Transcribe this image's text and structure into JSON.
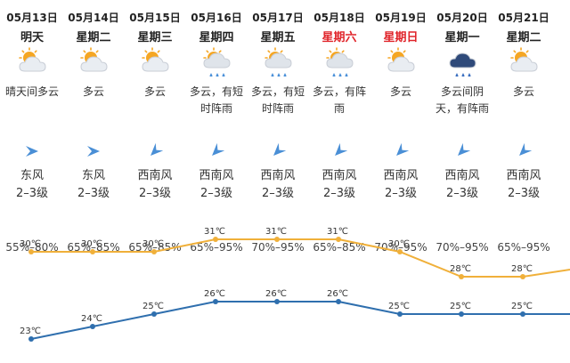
{
  "days": [
    {
      "date": "05月13日",
      "weekday": "明天",
      "weekend": false,
      "icon": "partly-cloudy-sun-icon",
      "desc": "晴天间多云",
      "wind_icon": "wind-arrow-west-icon",
      "wind_dir": "东风",
      "wind_level": "2–3级",
      "humidity": "55%–80%"
    },
    {
      "date": "05月14日",
      "weekday": "星期二",
      "weekend": false,
      "icon": "partly-cloudy-sun-icon",
      "desc": "多云",
      "wind_icon": "wind-arrow-west-icon",
      "wind_dir": "东风",
      "wind_level": "2–3级",
      "humidity": "65%–85%"
    },
    {
      "date": "05月15日",
      "weekday": "星期三",
      "weekend": false,
      "icon": "partly-cloudy-sun-icon",
      "desc": "多云",
      "wind_icon": "wind-arrow-northeast-icon",
      "wind_dir": "西南风",
      "wind_level": "2–3级",
      "humidity": "65%–85%"
    },
    {
      "date": "05月16日",
      "weekday": "星期四",
      "weekend": false,
      "icon": "shower-sun-icon",
      "desc": "多云，有短时阵雨",
      "wind_icon": "wind-arrow-northeast-icon",
      "wind_dir": "西南风",
      "wind_level": "2–3级",
      "humidity": "65%–95%"
    },
    {
      "date": "05月17日",
      "weekday": "星期五",
      "weekend": false,
      "icon": "shower-sun-icon",
      "desc": "多云，有短时阵雨",
      "wind_icon": "wind-arrow-northeast-icon",
      "wind_dir": "西南风",
      "wind_level": "2–3级",
      "humidity": "70%–95%"
    },
    {
      "date": "05月18日",
      "weekday": "星期六",
      "weekend": true,
      "icon": "shower-sun-icon",
      "desc": "多云，有阵雨",
      "wind_icon": "wind-arrow-northeast-icon",
      "wind_dir": "西南风",
      "wind_level": "2–3级",
      "humidity": "65%–85%"
    },
    {
      "date": "05月19日",
      "weekday": "星期日",
      "weekend": true,
      "icon": "partly-cloudy-sun-icon",
      "desc": "多云",
      "wind_icon": "wind-arrow-northeast-icon",
      "wind_dir": "西南风",
      "wind_level": "2–3级",
      "humidity": "70%–95%"
    },
    {
      "date": "05月20日",
      "weekday": "星期一",
      "weekend": false,
      "icon": "rain-cloud-icon",
      "desc": "多云间阴天，有阵雨",
      "wind_icon": "wind-arrow-northeast-icon",
      "wind_dir": "西南风",
      "wind_level": "2–3级",
      "humidity": "70%–95%"
    },
    {
      "date": "05月21日",
      "weekday": "星期二",
      "weekend": false,
      "icon": "partly-cloudy-sun-icon",
      "desc": "多云",
      "wind_icon": "wind-arrow-northeast-icon",
      "wind_dir": "西南风",
      "wind_level": "2–3级",
      "humidity": "65%–95%"
    }
  ],
  "colors": {
    "weekend_text": "#e0242a",
    "high_line": "#f0b03a",
    "low_line": "#2f6fae"
  },
  "chart_data": {
    "type": "line",
    "categories": [
      "05月13日",
      "05月14日",
      "05月15日",
      "05月16日",
      "05月17日",
      "05月18日",
      "05月19日",
      "05月20日",
      "05月21日"
    ],
    "unit": "℃",
    "series": [
      {
        "values": [
          30,
          30,
          30,
          31,
          31,
          31,
          30,
          28,
          28
        ],
        "color": "#f0b03a"
      },
      {
        "values": [
          23,
          24,
          25,
          26,
          26,
          26,
          25,
          25,
          25
        ],
        "color": "#2f6fae"
      }
    ],
    "grid": false
  }
}
